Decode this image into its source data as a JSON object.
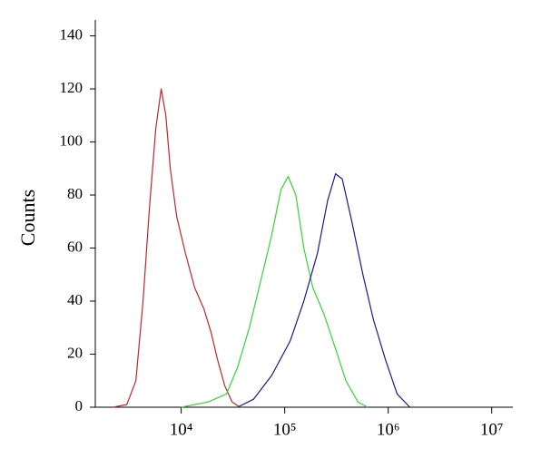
{
  "chart_data": {
    "type": "line",
    "y_label": "Counts",
    "xscale": "log",
    "xlim": [
      1480,
      16000000
    ],
    "ylim": [
      0,
      146
    ],
    "xticks": [
      {
        "value": 10000,
        "label": "10⁴"
      },
      {
        "value": 100000,
        "label": "10⁵"
      },
      {
        "value": 1000000,
        "label": "10⁶"
      },
      {
        "value": 10000000,
        "label": "10⁷"
      }
    ],
    "yticks": [
      0,
      20,
      40,
      60,
      80,
      100,
      120,
      140
    ],
    "series": [
      {
        "color": "#c0262b",
        "x": [
          2200,
          2980,
          3650,
          4280,
          4930,
          5680,
          6410,
          7100,
          7850,
          9040,
          11000,
          13500,
          16600,
          19500,
          22400,
          26400,
          31000,
          37000
        ],
        "values": [
          0,
          1,
          10,
          40,
          75,
          105,
          120,
          110,
          90,
          72,
          58,
          45,
          37,
          28,
          18,
          8,
          2,
          0
        ]
      },
      {
        "color": "#33d633",
        "x": [
          10000,
          18300,
          27400,
          35000,
          45500,
          59000,
          75000,
          92000,
          108000,
          128000,
          153000,
          187000,
          240000,
          310000,
          390000,
          510000,
          630000
        ],
        "values": [
          0,
          2,
          5,
          15,
          30,
          48,
          65,
          82,
          87,
          80,
          60,
          45,
          35,
          22,
          10,
          2,
          0
        ]
      },
      {
        "color": "#1a1a8f",
        "x": [
          35000,
          50000,
          75000,
          113000,
          153000,
          207000,
          260000,
          310000,
          360000,
          445000,
          570000,
          720000,
          940000,
          1220000,
          1620000
        ],
        "values": [
          0,
          3,
          12,
          25,
          40,
          58,
          78,
          88,
          86,
          70,
          50,
          33,
          18,
          5,
          0
        ]
      }
    ]
  }
}
